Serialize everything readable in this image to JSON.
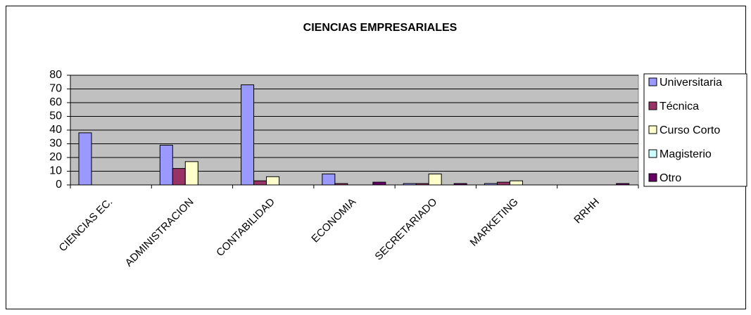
{
  "chart_data": {
    "type": "bar",
    "title": "CIENCIAS EMPRESARIALES",
    "categories": [
      "CIENCIAS EC.",
      "ADMINISTRACION",
      "CONTABILIDAD",
      "ECONOMIA",
      "SECRETARIADO",
      "MARKETING",
      "RRHH"
    ],
    "series": [
      {
        "name": "Universitaria",
        "color": "#9999ff",
        "values": [
          38,
          29,
          73,
          8,
          1,
          1,
          0
        ]
      },
      {
        "name": "Técnica",
        "color": "#993366",
        "values": [
          0,
          12,
          3,
          1,
          1,
          2,
          0
        ]
      },
      {
        "name": "Curso Corto",
        "color": "#ffffcc",
        "values": [
          0,
          17,
          6,
          0,
          8,
          3,
          0
        ]
      },
      {
        "name": "Magisterio",
        "color": "#ccffff",
        "values": [
          0,
          0,
          0,
          0,
          0,
          0,
          0
        ]
      },
      {
        "name": "Otro",
        "color": "#660066",
        "values": [
          0,
          0,
          0,
          2,
          1,
          0,
          1
        ]
      }
    ],
    "ylim": [
      0,
      80
    ],
    "yticks": [
      0,
      10,
      20,
      30,
      40,
      50,
      60,
      70,
      80
    ],
    "grid": true,
    "legend": "right"
  }
}
